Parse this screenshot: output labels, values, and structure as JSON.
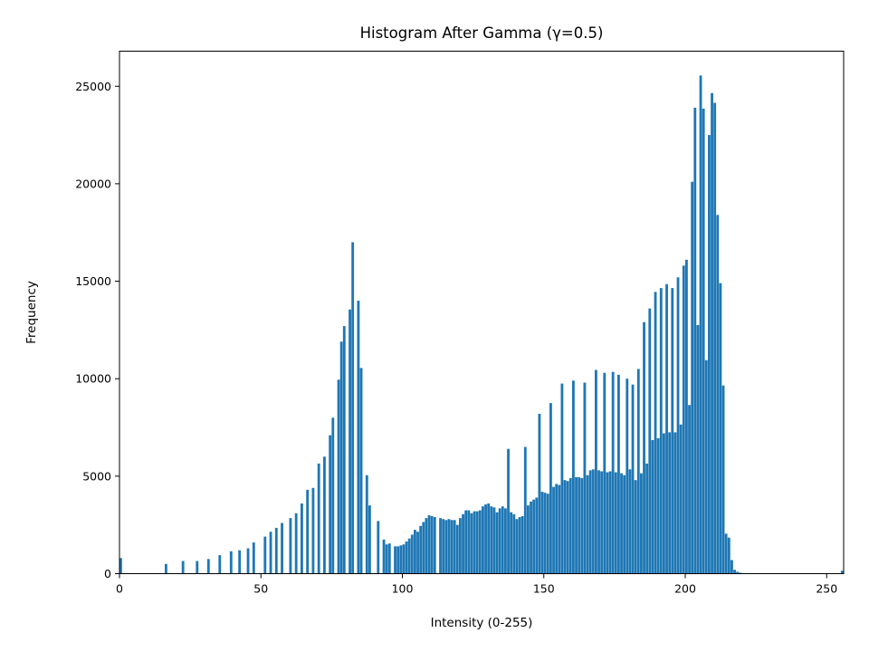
{
  "chart_data": {
    "type": "bar",
    "title": "Histogram After Gamma (γ=0.5)",
    "xlabel": "Intensity (0-255)",
    "ylabel": "Frequency",
    "xlim": [
      0,
      256
    ],
    "ylim": [
      0,
      26800
    ],
    "xticks": [
      0,
      50,
      100,
      150,
      200,
      250
    ],
    "yticks": [
      0,
      5000,
      10000,
      15000,
      20000,
      25000
    ],
    "grid": false,
    "bar_color": "#1f77b4",
    "bins": [
      [
        0,
        800
      ],
      [
        16,
        500
      ],
      [
        22,
        650
      ],
      [
        27,
        650
      ],
      [
        31,
        750
      ],
      [
        35,
        950
      ],
      [
        39,
        1150
      ],
      [
        42,
        1200
      ],
      [
        45,
        1300
      ],
      [
        47,
        1600
      ],
      [
        51,
        1900
      ],
      [
        53,
        2150
      ],
      [
        55,
        2350
      ],
      [
        57,
        2600
      ],
      [
        60,
        2850
      ],
      [
        62,
        3100
      ],
      [
        64,
        3600
      ],
      [
        66,
        4300
      ],
      [
        68,
        4400
      ],
      [
        70,
        5650
      ],
      [
        72,
        6000
      ],
      [
        74,
        7100
      ],
      [
        75,
        8000
      ],
      [
        77,
        9950
      ],
      [
        78,
        11900
      ],
      [
        79,
        12700
      ],
      [
        81,
        13550
      ],
      [
        82,
        17000
      ],
      [
        84,
        14000
      ],
      [
        85,
        10550
      ],
      [
        87,
        5050
      ],
      [
        88,
        3500
      ],
      [
        91,
        2700
      ],
      [
        93,
        1750
      ],
      [
        94,
        1500
      ],
      [
        95,
        1550
      ],
      [
        97,
        1400
      ],
      [
        98,
        1400
      ],
      [
        99,
        1450
      ],
      [
        100,
        1500
      ],
      [
        101,
        1650
      ],
      [
        102,
        1800
      ],
      [
        103,
        2000
      ],
      [
        104,
        2250
      ],
      [
        105,
        2150
      ],
      [
        106,
        2450
      ],
      [
        107,
        2650
      ],
      [
        108,
        2850
      ],
      [
        109,
        3000
      ],
      [
        110,
        2950
      ],
      [
        111,
        2900
      ],
      [
        113,
        2850
      ],
      [
        114,
        2800
      ],
      [
        115,
        2750
      ],
      [
        116,
        2800
      ],
      [
        117,
        2750
      ],
      [
        118,
        2750
      ],
      [
        119,
        2500
      ],
      [
        120,
        2850
      ],
      [
        121,
        3050
      ],
      [
        122,
        3250
      ],
      [
        123,
        3250
      ],
      [
        124,
        3100
      ],
      [
        125,
        3200
      ],
      [
        126,
        3200
      ],
      [
        127,
        3250
      ],
      [
        128,
        3450
      ],
      [
        129,
        3550
      ],
      [
        130,
        3600
      ],
      [
        131,
        3450
      ],
      [
        132,
        3400
      ],
      [
        133,
        3150
      ],
      [
        134,
        3350
      ],
      [
        135,
        3450
      ],
      [
        136,
        3350
      ],
      [
        137,
        6400
      ],
      [
        138,
        3150
      ],
      [
        139,
        3050
      ],
      [
        140,
        2800
      ],
      [
        141,
        2900
      ],
      [
        142,
        2950
      ],
      [
        143,
        6500
      ],
      [
        144,
        3500
      ],
      [
        145,
        3700
      ],
      [
        146,
        3800
      ],
      [
        147,
        3900
      ],
      [
        148,
        8200
      ],
      [
        149,
        4200
      ],
      [
        150,
        4150
      ],
      [
        151,
        4100
      ],
      [
        152,
        8750
      ],
      [
        153,
        4450
      ],
      [
        154,
        4600
      ],
      [
        155,
        4550
      ],
      [
        156,
        9750
      ],
      [
        157,
        4800
      ],
      [
        158,
        4750
      ],
      [
        159,
        4900
      ],
      [
        160,
        9900
      ],
      [
        161,
        4950
      ],
      [
        162,
        4950
      ],
      [
        163,
        4900
      ],
      [
        164,
        9800
      ],
      [
        165,
        5050
      ],
      [
        166,
        5300
      ],
      [
        167,
        5350
      ],
      [
        168,
        10450
      ],
      [
        169,
        5300
      ],
      [
        170,
        5250
      ],
      [
        171,
        10300
      ],
      [
        172,
        5200
      ],
      [
        173,
        5250
      ],
      [
        174,
        10350
      ],
      [
        175,
        5200
      ],
      [
        176,
        10200
      ],
      [
        177,
        5150
      ],
      [
        178,
        5050
      ],
      [
        179,
        10000
      ],
      [
        180,
        5350
      ],
      [
        181,
        9700
      ],
      [
        182,
        4800
      ],
      [
        183,
        10500
      ],
      [
        184,
        5150
      ],
      [
        185,
        12900
      ],
      [
        186,
        5650
      ],
      [
        187,
        13600
      ],
      [
        188,
        6850
      ],
      [
        189,
        14450
      ],
      [
        190,
        6950
      ],
      [
        191,
        14650
      ],
      [
        192,
        7200
      ],
      [
        193,
        14850
      ],
      [
        194,
        7250
      ],
      [
        195,
        14650
      ],
      [
        196,
        7250
      ],
      [
        197,
        15200
      ],
      [
        198,
        7650
      ],
      [
        199,
        15800
      ],
      [
        200,
        16100
      ],
      [
        201,
        8650
      ],
      [
        202,
        20100
      ],
      [
        203,
        23900
      ],
      [
        204,
        12750
      ],
      [
        205,
        25550
      ],
      [
        206,
        23850
      ],
      [
        207,
        10950
      ],
      [
        208,
        22500
      ],
      [
        209,
        24650
      ],
      [
        210,
        24150
      ],
      [
        211,
        18400
      ],
      [
        212,
        14900
      ],
      [
        213,
        9650
      ],
      [
        214,
        2050
      ],
      [
        215,
        1850
      ],
      [
        216,
        700
      ],
      [
        217,
        200
      ],
      [
        218,
        100
      ],
      [
        219,
        50
      ],
      [
        220,
        30
      ],
      [
        221,
        20
      ],
      [
        222,
        10
      ],
      [
        223,
        10
      ],
      [
        255,
        150
      ]
    ]
  }
}
